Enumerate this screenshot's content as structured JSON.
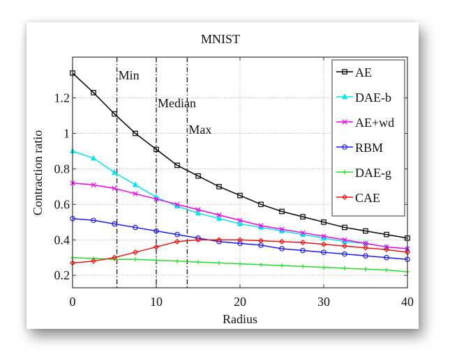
{
  "chart_data": {
    "type": "line",
    "title": "MNIST",
    "xlabel": "Radius",
    "ylabel": "Contraction ratio",
    "xlim": [
      0,
      40
    ],
    "ylim": [
      0.13,
      1.43
    ],
    "xticks": [
      0,
      10,
      20,
      30,
      40
    ],
    "xtick_labels": [
      "0",
      "10",
      "20",
      "30",
      "40"
    ],
    "yticks": [
      0.2,
      0.4,
      0.6,
      0.8,
      1.0,
      1.2
    ],
    "ytick_labels": [
      "0.2",
      "0.4",
      "0.6",
      "0.8",
      "1",
      "1.2"
    ],
    "grid": true,
    "legend_position": "top-right",
    "x": [
      0,
      2.5,
      5,
      7.5,
      10,
      12.5,
      15,
      17.5,
      20,
      22.5,
      25,
      27.5,
      30,
      32.5,
      35,
      37.5,
      40
    ],
    "series": [
      {
        "name": "AE",
        "color": "#000000",
        "marker": "square",
        "values": [
          1.34,
          1.23,
          1.11,
          1.0,
          0.91,
          0.82,
          0.76,
          0.7,
          0.65,
          0.6,
          0.56,
          0.53,
          0.5,
          0.47,
          0.45,
          0.43,
          0.41
        ]
      },
      {
        "name": "DAE-b",
        "color": "#00e5ee",
        "marker": "triangle",
        "values": [
          0.9,
          0.86,
          0.78,
          0.71,
          0.64,
          0.59,
          0.55,
          0.52,
          0.49,
          0.47,
          0.45,
          0.43,
          0.41,
          0.39,
          0.38,
          0.36,
          0.35
        ]
      },
      {
        "name": "AE+wd",
        "color": "#ee00ee",
        "marker": "x",
        "values": [
          0.72,
          0.71,
          0.69,
          0.66,
          0.63,
          0.6,
          0.57,
          0.54,
          0.51,
          0.48,
          0.46,
          0.44,
          0.42,
          0.4,
          0.38,
          0.36,
          0.35
        ]
      },
      {
        "name": "RBM",
        "color": "#1a1aee",
        "marker": "circle",
        "values": [
          0.52,
          0.51,
          0.49,
          0.47,
          0.45,
          0.43,
          0.41,
          0.39,
          0.38,
          0.37,
          0.35,
          0.34,
          0.33,
          0.32,
          0.31,
          0.3,
          0.29
        ]
      },
      {
        "name": "DAE-g",
        "color": "#22dd22",
        "marker": "plus",
        "values": [
          0.3,
          0.295,
          0.29,
          0.29,
          0.285,
          0.28,
          0.275,
          0.27,
          0.265,
          0.26,
          0.255,
          0.25,
          0.245,
          0.24,
          0.235,
          0.23,
          0.22
        ]
      },
      {
        "name": "CAE",
        "color": "#ee1111",
        "marker": "diamond",
        "values": [
          0.27,
          0.28,
          0.3,
          0.33,
          0.36,
          0.39,
          0.4,
          0.4,
          0.4,
          0.395,
          0.39,
          0.385,
          0.375,
          0.365,
          0.355,
          0.345,
          0.33
        ]
      }
    ],
    "annotations": [
      {
        "label": "Min",
        "x": 5.3
      },
      {
        "label": "Median",
        "x": 10.0
      },
      {
        "label": "Max",
        "x": 13.7
      }
    ]
  }
}
